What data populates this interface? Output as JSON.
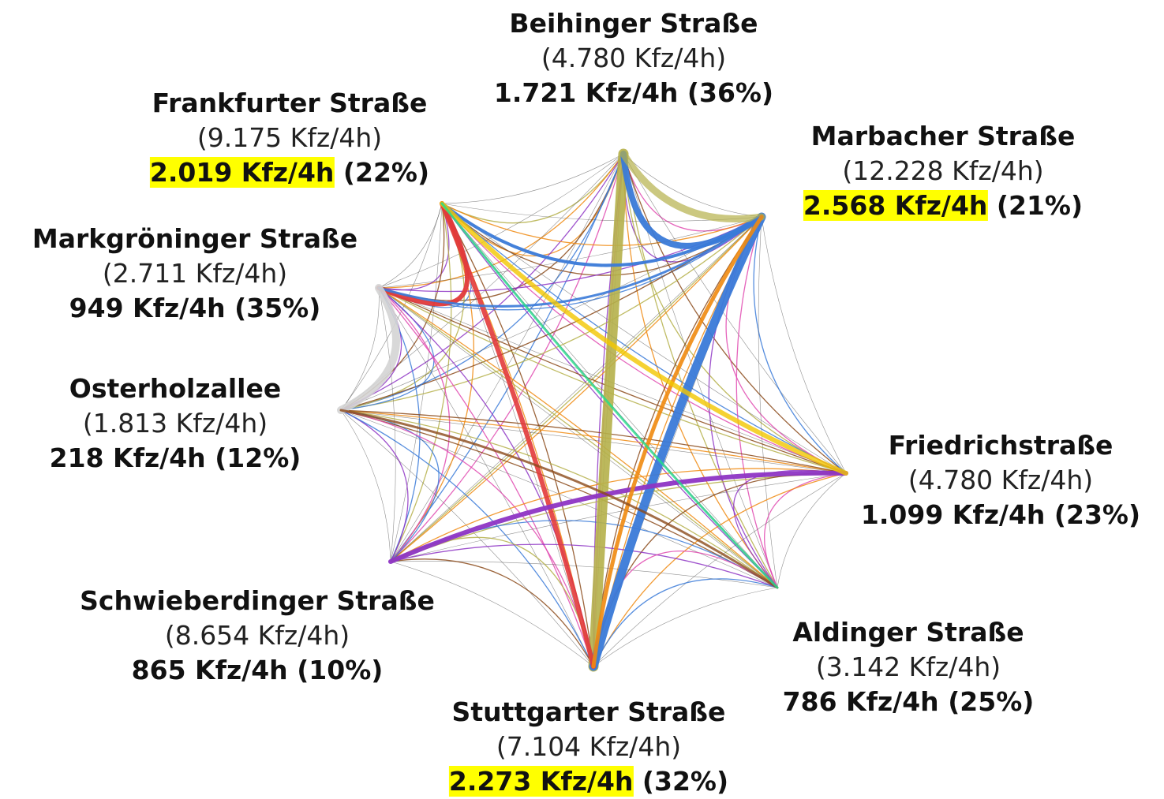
{
  "nodes": [
    {
      "name": "Beihinger Straße",
      "total": "(4.780 Kfz/4h)",
      "flow": "1.721 Kfz/4h",
      "share": "(36%)",
      "highlight": false
    },
    {
      "name": "Frankfurter Straße",
      "total": "(9.175 Kfz/4h)",
      "flow": "2.019 Kfz/4h",
      "share": "(22%)",
      "highlight": true
    },
    {
      "name": "Marbacher Straße",
      "total": "(12.228 Kfz/4h)",
      "flow": "2.568 Kfz/4h",
      "share": "(21%)",
      "highlight": true
    },
    {
      "name": "Markgröninger Straße",
      "total": "(2.711 Kfz/4h)",
      "flow": "949 Kfz/4h",
      "share": "(35%)",
      "highlight": false
    },
    {
      "name": "Osterholzallee",
      "total": "(1.813 Kfz/4h)",
      "flow": "218 Kfz/4h",
      "share": "(12%)",
      "highlight": false
    },
    {
      "name": "Friedrichstraße",
      "total": "(4.780 Kfz/4h)",
      "flow": "1.099 Kfz/4h",
      "share": "(23%)",
      "highlight": false
    },
    {
      "name": "Schwieberdinger Straße",
      "total": "(8.654 Kfz/4h)",
      "flow": "865 Kfz/4h",
      "share": "(10%)",
      "highlight": false
    },
    {
      "name": "Aldinger Straße",
      "total": "(3.142 Kfz/4h)",
      "flow": "786 Kfz/4h",
      "share": "(25%)",
      "highlight": false
    },
    {
      "name": "Stuttgarter Straße",
      "total": "(7.104 Kfz/4h)",
      "flow": "2.273 Kfz/4h",
      "share": "(32%)",
      "highlight": true
    }
  ]
}
